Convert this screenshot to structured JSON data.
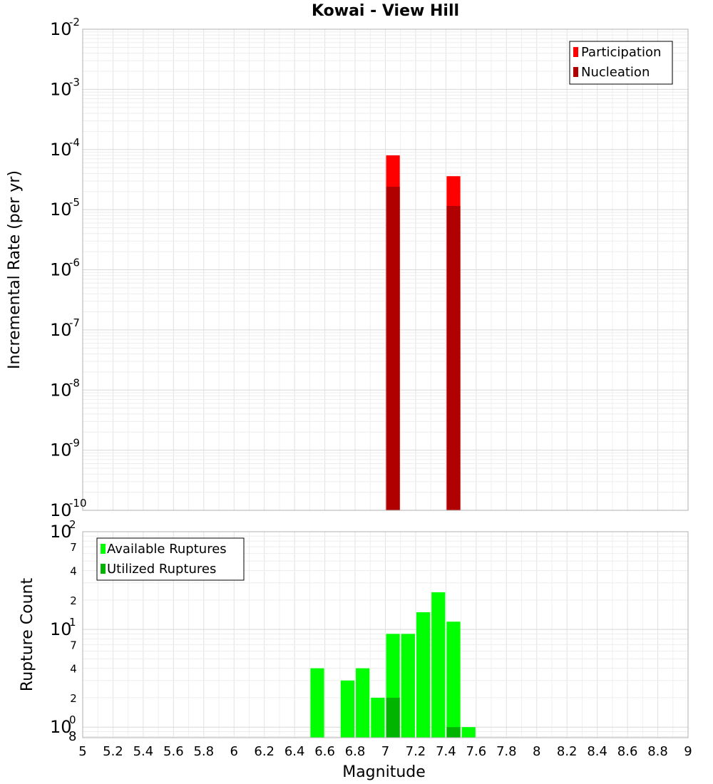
{
  "chart_data": [
    {
      "type": "bar",
      "title": "Kowai - View Hill",
      "xlabel": "",
      "ylabel": "Incremental Rate (per yr)",
      "yscale": "log",
      "xlim": [
        5,
        9
      ],
      "ylim": [
        1e-10,
        0.01
      ],
      "y_tick_exponents": [
        -10,
        -9,
        -8,
        -7,
        -6,
        -5,
        -4,
        -3,
        -2
      ],
      "y_tick_base": "10",
      "bar_width": 0.1,
      "legend": {
        "position": "top-right",
        "entries": [
          "Participation",
          "Nucleation"
        ]
      },
      "colors": {
        "Participation": "#ff0000",
        "Nucleation": "#b00000"
      },
      "series": [
        {
          "name": "Participation",
          "x": [
            7.05,
            7.45
          ],
          "values": [
            8e-05,
            3.6e-05
          ]
        },
        {
          "name": "Nucleation",
          "x": [
            7.05,
            7.45
          ],
          "values": [
            2.4e-05,
            1.15e-05
          ]
        }
      ]
    },
    {
      "type": "bar",
      "title": "",
      "xlabel": "Magnitude",
      "ylabel": "Rupture Count",
      "yscale": "log",
      "xlim": [
        5,
        9
      ],
      "ylim": [
        0.78,
        100
      ],
      "x_ticks": [
        "5",
        "5.2",
        "5.4",
        "5.6",
        "5.8",
        "6",
        "6.2",
        "6.4",
        "6.6",
        "6.8",
        "7",
        "7.2",
        "7.4",
        "7.6",
        "7.8",
        "8",
        "8.2",
        "8.4",
        "8.6",
        "8.8",
        "9"
      ],
      "y_major_ticks": [
        {
          "value": 1,
          "base": "10",
          "sup": "0",
          "below": "8"
        },
        {
          "value": 10,
          "base": "10",
          "sup": "1"
        },
        {
          "value": 100,
          "base": "10",
          "sup": "2"
        }
      ],
      "y_minor_ticks": [
        {
          "value": 2,
          "label": "2"
        },
        {
          "value": 4,
          "label": "4"
        },
        {
          "value": 7,
          "label": "7"
        },
        {
          "value": 20,
          "label": "2"
        },
        {
          "value": 40,
          "label": "4"
        },
        {
          "value": 70,
          "label": "7"
        }
      ],
      "bar_width": 0.1,
      "legend": {
        "position": "top-left",
        "entries": [
          "Available Ruptures",
          "Utilized Ruptures"
        ]
      },
      "colors": {
        "Available Ruptures": "#00ff00",
        "Utilized Ruptures": "#00b400"
      },
      "series": [
        {
          "name": "Available Ruptures",
          "x": [
            6.55,
            6.75,
            6.85,
            6.95,
            7.05,
            7.15,
            7.25,
            7.35,
            7.45,
            7.55
          ],
          "values": [
            4,
            3,
            4,
            2,
            9,
            9,
            15,
            24,
            12,
            1
          ]
        },
        {
          "name": "Utilized Ruptures",
          "x": [
            7.05,
            7.45
          ],
          "values": [
            2,
            1
          ]
        }
      ]
    }
  ]
}
